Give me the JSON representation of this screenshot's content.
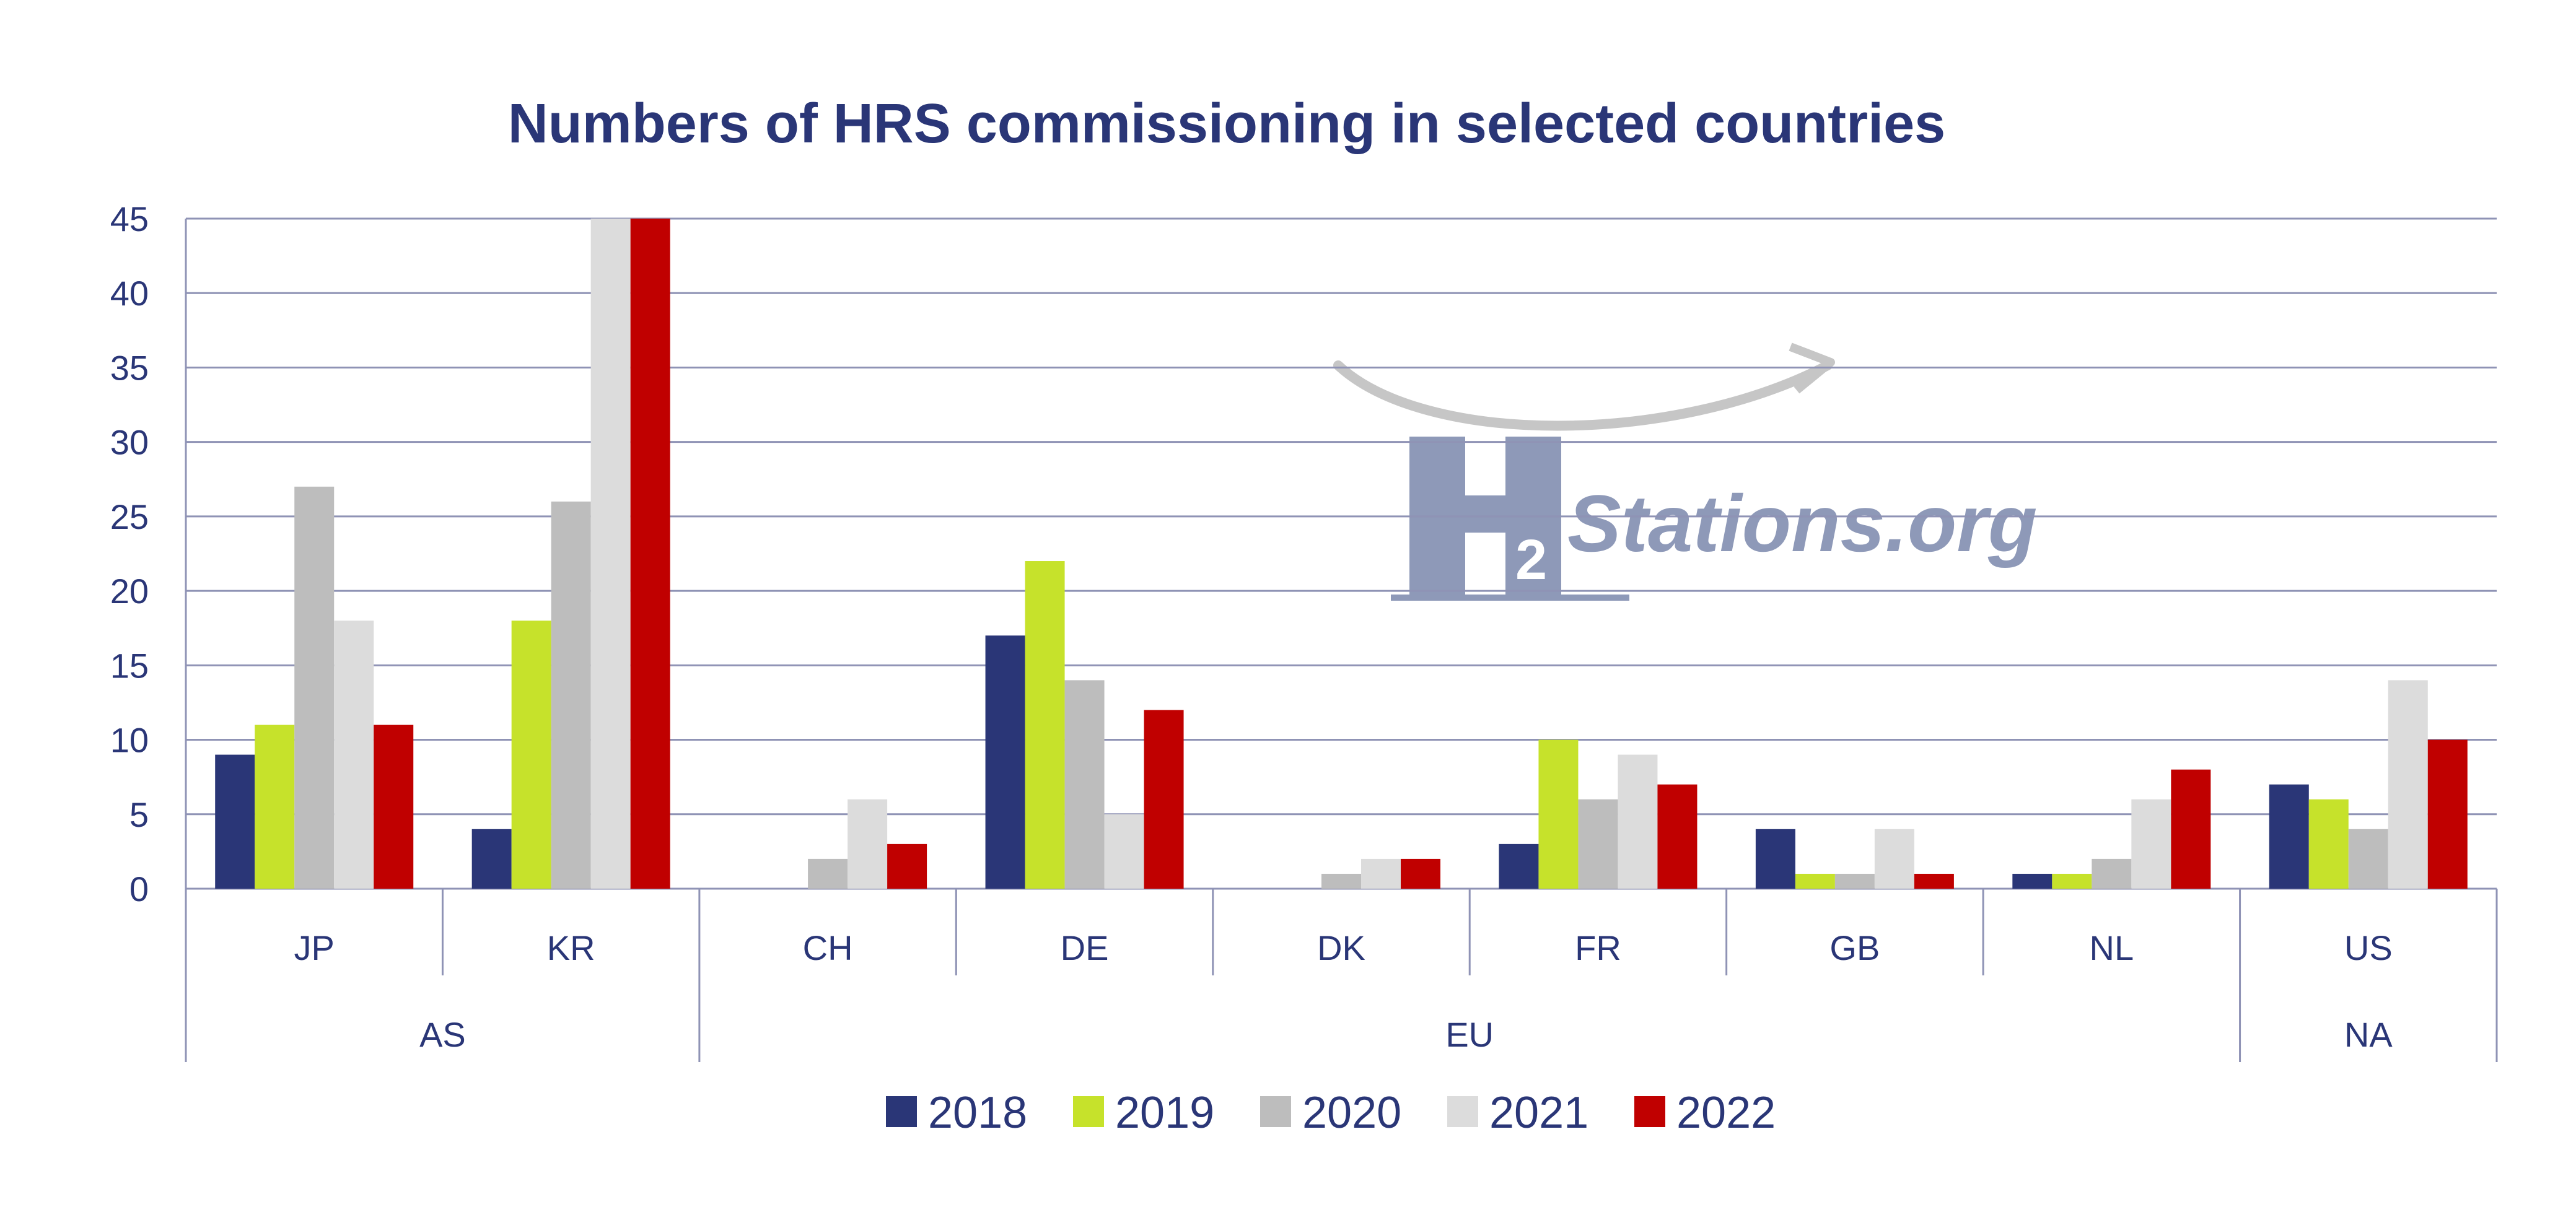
{
  "chart_data": {
    "type": "bar",
    "title": "Numbers of HRS commissioning in selected countries",
    "ylim": [
      0,
      45
    ],
    "yticks": [
      0,
      5,
      10,
      15,
      20,
      25,
      30,
      35,
      40,
      45
    ],
    "grid": true,
    "legend_position": "bottom",
    "categories": [
      "JP",
      "KR",
      "CH",
      "DE",
      "DK",
      "FR",
      "GB",
      "NL",
      "US"
    ],
    "groups": [
      {
        "label": "AS",
        "categories": [
          "JP",
          "KR"
        ]
      },
      {
        "label": "EU",
        "categories": [
          "CH",
          "DE",
          "DK",
          "FR",
          "GB",
          "NL"
        ]
      },
      {
        "label": "NA",
        "categories": [
          "US"
        ]
      }
    ],
    "series": [
      {
        "name": "2018",
        "color": "#2a3677",
        "values": [
          9,
          4,
          0,
          17,
          0,
          3,
          4,
          1,
          7
        ]
      },
      {
        "name": "2019",
        "color": "#c6e22b",
        "values": [
          11,
          18,
          0,
          22,
          0,
          10,
          1,
          1,
          6
        ]
      },
      {
        "name": "2020",
        "color": "#bdbdbd",
        "values": [
          27,
          26,
          2,
          14,
          1,
          6,
          1,
          2,
          4
        ]
      },
      {
        "name": "2021",
        "color": "#dcdcdc",
        "values": [
          18,
          45,
          6,
          5,
          2,
          9,
          4,
          6,
          14
        ]
      },
      {
        "name": "2022",
        "color": "#c00000",
        "values": [
          11,
          45,
          3,
          12,
          2,
          7,
          1,
          8,
          10
        ]
      }
    ]
  },
  "watermark": {
    "letter": "H",
    "subscript": "2",
    "text": "Stations.org"
  },
  "colors": {
    "text": "#2a3677",
    "grid": "#8f93b5",
    "watermark": "#8e99b8"
  }
}
